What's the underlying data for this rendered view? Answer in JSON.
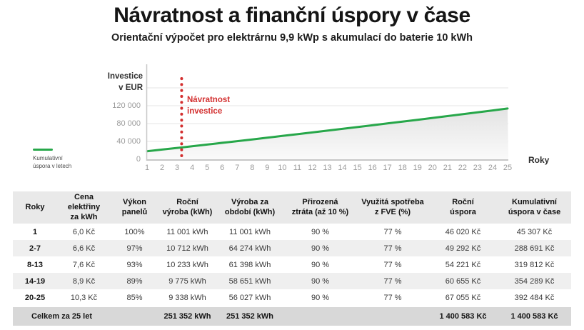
{
  "page": {
    "title": "Návratnost a finanční úspory v čase",
    "subtitle": "Orientační výpočet pro elektrárnu 9,9 kWp s akumulací do baterie 10 kWh"
  },
  "colors": {
    "line_green": "#27a74a",
    "annotation_red": "#d32f2f",
    "grid": "#e4e4e4",
    "axis": "#c7c7c7"
  },
  "chart_data": {
    "type": "line",
    "title": "Návratnost a finanční úspory v čase",
    "xlabel": "Roky",
    "ylabel": "Investice\nv EUR",
    "legend_label": "Kumulativní\núspora v letech",
    "legend_position": "left",
    "grid": true,
    "ylim": [
      0,
      160000
    ],
    "ytick_values": [
      0,
      40000,
      80000,
      120000
    ],
    "ytick_labels": [
      "0",
      "40 000",
      "80 000",
      "120 000"
    ],
    "x": [
      1,
      2,
      3,
      4,
      5,
      6,
      7,
      8,
      9,
      10,
      11,
      12,
      13,
      14,
      15,
      16,
      17,
      18,
      19,
      20,
      21,
      22,
      23,
      24,
      25
    ],
    "series": [
      {
        "name": "Kumulativní úspora v letech",
        "values": [
          18000,
          21700,
          25400,
          29200,
          33000,
          36800,
          40600,
          44500,
          48400,
          52300,
          56200,
          60200,
          64100,
          68100,
          72200,
          76200,
          80300,
          84400,
          88500,
          92600,
          96800,
          101000,
          105200,
          109400,
          113700
        ]
      }
    ],
    "annotation": {
      "label": "Návratnost\ninvestice",
      "x": 3.3
    }
  },
  "table": {
    "headers": [
      "Roky",
      "Cena elektřiny\nza kWh",
      "Výkon\npanelů",
      "Roční\nvýroba (kWh)",
      "Výroba za\nobdobí (kWh)",
      "Přirozená\nztráta (až 10 %)",
      "Využitá spotřeba\nz FVE (%)",
      "Roční\núspora",
      "Kumulativní\núspora v čase"
    ],
    "rows": [
      [
        "1",
        "6,0 Kč",
        "100%",
        "11 001 kWh",
        "11 001 kWh",
        "90 %",
        "77 %",
        "46 020 Kč",
        "45 307 Kč"
      ],
      [
        "2-7",
        "6,6 Kč",
        "97%",
        "10 712 kWh",
        "64 274 kWh",
        "90 %",
        "77 %",
        "49 292 Kč",
        "288 691 Kč"
      ],
      [
        "8-13",
        "7,6 Kč",
        "93%",
        "10 233 kWh",
        "61 398 kWh",
        "90 %",
        "77 %",
        "54 221 Kč",
        "319 812 Kč"
      ],
      [
        "14-19",
        "8,9 Kč",
        "89%",
        "9 775 kWh",
        "58 651 kWh",
        "90 %",
        "77 %",
        "60 655 Kč",
        "354 289 Kč"
      ],
      [
        "20-25",
        "10,3 Kč",
        "85%",
        "9 338 kWh",
        "56 027 kWh",
        "90 %",
        "77 %",
        "67 055 Kč",
        "392 484 Kč"
      ]
    ],
    "total_row": {
      "label": "Celkem za 25 let",
      "cells": [
        "",
        "251 352 kWh",
        "251 352 kWh",
        "",
        "",
        "1 400 583 Kč",
        "1 400 583 Kč"
      ]
    }
  }
}
